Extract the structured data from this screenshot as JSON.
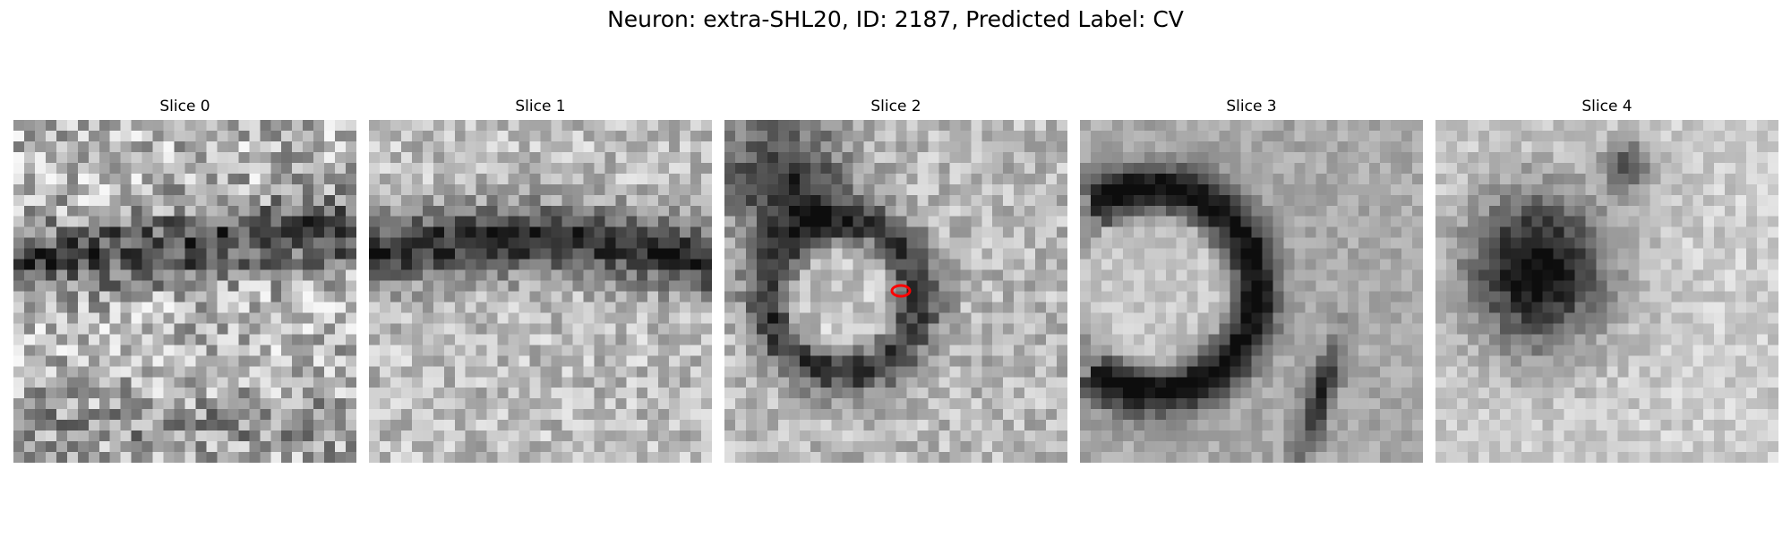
{
  "title": "Neuron: extra-SHL20, ID: 2187, Predicted Label: CV",
  "slices": [
    {
      "label": "Slice 0",
      "pattern": "noisy-horizontal-dark-band",
      "seed": 11
    },
    {
      "label": "Slice 1",
      "pattern": "diagonal-dark-band",
      "seed": 23
    },
    {
      "label": "Slice 2",
      "pattern": "ring-with-marker",
      "seed": 37
    },
    {
      "label": "Slice 3",
      "pattern": "c-shaped-dark-ring",
      "seed": 41
    },
    {
      "label": "Slice 4",
      "pattern": "dark-blob-left",
      "seed": 53
    }
  ],
  "colors": {
    "marker": "#ff0000"
  }
}
